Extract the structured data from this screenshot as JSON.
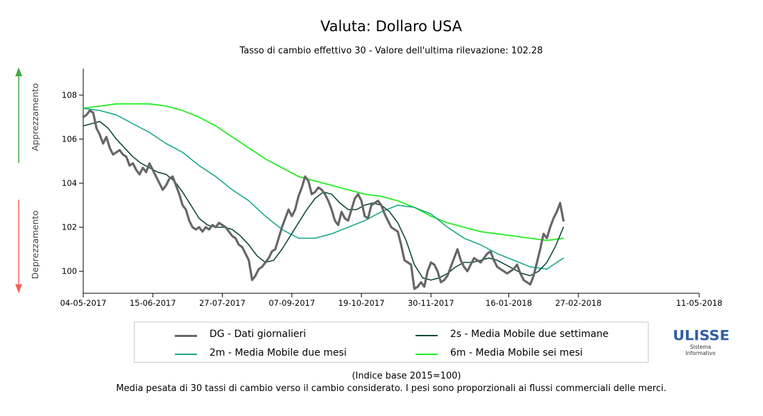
{
  "chart_data": {
    "type": "line",
    "title": "Valuta: Dollaro USA",
    "subtitle": "Tasso di cambio effettivo 30 - Valore dell'ultima rilevazione: 102.28",
    "y_ticks": [
      "100",
      "102",
      "104",
      "106",
      "108"
    ],
    "ylim": [
      99,
      109.2
    ],
    "x_ticks": [
      "04-05-2017",
      "15-06-2017",
      "27-07-2017",
      "07-09-2017",
      "19-10-2017",
      "30-11-2017",
      "16-01-2018",
      "27-02-2018",
      "11-05-2018"
    ],
    "x_tick_days": [
      0,
      42,
      84,
      126,
      168,
      210,
      257,
      299,
      372
    ],
    "x_max_day": 372,
    "grid": false,
    "side_labels": {
      "up": "Apprezzamento",
      "down": "Deprezzamento"
    },
    "series": [
      {
        "name": "DG - Dati giornalieri",
        "color": "#666666",
        "points": [
          [
            0,
            107.0
          ],
          [
            2,
            107.1
          ],
          [
            4,
            107.3
          ],
          [
            6,
            107.2
          ],
          [
            8,
            106.5
          ],
          [
            10,
            106.2
          ],
          [
            12,
            105.8
          ],
          [
            14,
            106.1
          ],
          [
            16,
            105.6
          ],
          [
            18,
            105.3
          ],
          [
            20,
            105.4
          ],
          [
            22,
            105.5
          ],
          [
            24,
            105.3
          ],
          [
            26,
            105.2
          ],
          [
            28,
            104.8
          ],
          [
            30,
            104.9
          ],
          [
            32,
            104.6
          ],
          [
            34,
            104.4
          ],
          [
            36,
            104.7
          ],
          [
            38,
            104.5
          ],
          [
            40,
            104.9
          ],
          [
            42,
            104.6
          ],
          [
            44,
            104.3
          ],
          [
            46,
            104.0
          ],
          [
            48,
            103.7
          ],
          [
            50,
            103.9
          ],
          [
            52,
            104.2
          ],
          [
            54,
            104.3
          ],
          [
            56,
            103.9
          ],
          [
            58,
            103.5
          ],
          [
            60,
            103.0
          ],
          [
            62,
            102.8
          ],
          [
            64,
            102.3
          ],
          [
            66,
            102.0
          ],
          [
            68,
            101.9
          ],
          [
            70,
            102.0
          ],
          [
            72,
            101.8
          ],
          [
            74,
            102.0
          ],
          [
            76,
            101.9
          ],
          [
            78,
            102.1
          ],
          [
            80,
            102.0
          ],
          [
            82,
            102.2
          ],
          [
            84,
            102.1
          ],
          [
            86,
            102.0
          ],
          [
            88,
            101.8
          ],
          [
            90,
            101.6
          ],
          [
            92,
            101.5
          ],
          [
            94,
            101.2
          ],
          [
            96,
            101.1
          ],
          [
            98,
            100.8
          ],
          [
            100,
            100.5
          ],
          [
            102,
            99.6
          ],
          [
            104,
            99.8
          ],
          [
            106,
            100.1
          ],
          [
            108,
            100.2
          ],
          [
            110,
            100.4
          ],
          [
            112,
            100.6
          ],
          [
            114,
            100.9
          ],
          [
            116,
            101.0
          ],
          [
            118,
            101.5
          ],
          [
            120,
            102.0
          ],
          [
            122,
            102.4
          ],
          [
            124,
            102.8
          ],
          [
            126,
            102.5
          ],
          [
            128,
            102.8
          ],
          [
            130,
            103.4
          ],
          [
            132,
            103.8
          ],
          [
            134,
            104.3
          ],
          [
            136,
            104.1
          ],
          [
            138,
            103.5
          ],
          [
            140,
            103.6
          ],
          [
            142,
            103.8
          ],
          [
            144,
            103.7
          ],
          [
            146,
            103.5
          ],
          [
            148,
            103.2
          ],
          [
            150,
            102.8
          ],
          [
            152,
            102.3
          ],
          [
            154,
            102.1
          ],
          [
            156,
            102.7
          ],
          [
            158,
            102.4
          ],
          [
            160,
            102.3
          ],
          [
            162,
            102.8
          ],
          [
            164,
            103.3
          ],
          [
            166,
            103.5
          ],
          [
            168,
            103.2
          ],
          [
            170,
            102.5
          ],
          [
            172,
            102.4
          ],
          [
            174,
            103.0
          ],
          [
            176,
            103.1
          ],
          [
            178,
            103.2
          ],
          [
            180,
            103.0
          ],
          [
            182,
            102.6
          ],
          [
            184,
            102.3
          ],
          [
            186,
            102.0
          ],
          [
            188,
            101.9
          ],
          [
            190,
            101.8
          ],
          [
            192,
            101.2
          ],
          [
            194,
            100.5
          ],
          [
            196,
            100.4
          ],
          [
            198,
            100.3
          ],
          [
            200,
            99.2
          ],
          [
            202,
            99.3
          ],
          [
            204,
            99.5
          ],
          [
            206,
            99.3
          ],
          [
            208,
            100.0
          ],
          [
            210,
            100.4
          ],
          [
            212,
            100.3
          ],
          [
            214,
            100.0
          ],
          [
            216,
            99.5
          ],
          [
            218,
            99.6
          ],
          [
            220,
            99.8
          ],
          [
            222,
            100.2
          ],
          [
            224,
            100.6
          ],
          [
            226,
            101.0
          ],
          [
            228,
            100.5
          ],
          [
            230,
            100.2
          ],
          [
            232,
            100.0
          ],
          [
            234,
            100.3
          ],
          [
            236,
            100.6
          ],
          [
            238,
            100.5
          ],
          [
            240,
            100.4
          ],
          [
            242,
            100.6
          ],
          [
            244,
            100.8
          ],
          [
            246,
            100.9
          ],
          [
            248,
            100.5
          ],
          [
            250,
            100.2
          ],
          [
            252,
            100.1
          ],
          [
            254,
            100.0
          ],
          [
            256,
            99.9
          ],
          [
            258,
            100.0
          ],
          [
            260,
            100.1
          ],
          [
            262,
            100.3
          ],
          [
            264,
            99.9
          ],
          [
            266,
            99.6
          ],
          [
            268,
            99.5
          ],
          [
            270,
            99.4
          ],
          [
            272,
            99.8
          ],
          [
            274,
            100.4
          ],
          [
            276,
            101.0
          ],
          [
            278,
            101.7
          ],
          [
            280,
            101.5
          ],
          [
            282,
            102.0
          ],
          [
            284,
            102.4
          ],
          [
            286,
            102.7
          ],
          [
            288,
            103.1
          ],
          [
            290,
            102.3
          ]
        ]
      },
      {
        "name": "2s - Media Mobile due settimane",
        "color": "#0d4a3c",
        "points": [
          [
            0,
            106.6
          ],
          [
            5,
            106.7
          ],
          [
            10,
            106.8
          ],
          [
            15,
            106.5
          ],
          [
            20,
            106.0
          ],
          [
            25,
            105.6
          ],
          [
            30,
            105.2
          ],
          [
            35,
            104.9
          ],
          [
            40,
            104.7
          ],
          [
            45,
            104.5
          ],
          [
            50,
            104.4
          ],
          [
            55,
            104.1
          ],
          [
            60,
            103.6
          ],
          [
            65,
            103.0
          ],
          [
            70,
            102.4
          ],
          [
            75,
            102.1
          ],
          [
            80,
            102.0
          ],
          [
            85,
            102.0
          ],
          [
            90,
            101.9
          ],
          [
            95,
            101.6
          ],
          [
            100,
            101.2
          ],
          [
            105,
            100.7
          ],
          [
            110,
            100.4
          ],
          [
            115,
            100.5
          ],
          [
            120,
            101.0
          ],
          [
            125,
            101.6
          ],
          [
            130,
            102.2
          ],
          [
            135,
            102.8
          ],
          [
            140,
            103.3
          ],
          [
            145,
            103.6
          ],
          [
            150,
            103.5
          ],
          [
            155,
            103.1
          ],
          [
            160,
            102.8
          ],
          [
            165,
            102.8
          ],
          [
            170,
            103.0
          ],
          [
            175,
            103.1
          ],
          [
            180,
            103.0
          ],
          [
            185,
            102.7
          ],
          [
            190,
            102.2
          ],
          [
            195,
            101.4
          ],
          [
            200,
            100.3
          ],
          [
            205,
            99.7
          ],
          [
            210,
            99.6
          ],
          [
            215,
            99.7
          ],
          [
            220,
            99.9
          ],
          [
            225,
            100.2
          ],
          [
            230,
            100.4
          ],
          [
            235,
            100.4
          ],
          [
            240,
            100.5
          ],
          [
            245,
            100.6
          ],
          [
            250,
            100.5
          ],
          [
            255,
            100.3
          ],
          [
            260,
            100.1
          ],
          [
            265,
            99.9
          ],
          [
            270,
            99.8
          ],
          [
            275,
            100.0
          ],
          [
            280,
            100.4
          ],
          [
            285,
            101.1
          ],
          [
            290,
            102.0
          ]
        ]
      },
      {
        "name": "2m - Media Mobile due mesi",
        "color": "#1aa98c",
        "points": [
          [
            0,
            107.4
          ],
          [
            10,
            107.3
          ],
          [
            20,
            107.1
          ],
          [
            30,
            106.7
          ],
          [
            40,
            106.3
          ],
          [
            50,
            105.8
          ],
          [
            60,
            105.4
          ],
          [
            70,
            104.8
          ],
          [
            80,
            104.3
          ],
          [
            90,
            103.7
          ],
          [
            100,
            103.2
          ],
          [
            110,
            102.5
          ],
          [
            120,
            101.9
          ],
          [
            130,
            101.5
          ],
          [
            140,
            101.5
          ],
          [
            150,
            101.7
          ],
          [
            160,
            102.0
          ],
          [
            170,
            102.3
          ],
          [
            180,
            102.7
          ],
          [
            190,
            103.0
          ],
          [
            200,
            102.9
          ],
          [
            210,
            102.6
          ],
          [
            220,
            102.0
          ],
          [
            230,
            101.5
          ],
          [
            240,
            101.2
          ],
          [
            250,
            100.8
          ],
          [
            260,
            100.5
          ],
          [
            270,
            100.2
          ],
          [
            280,
            100.1
          ],
          [
            290,
            100.6
          ]
        ]
      },
      {
        "name": "6m - Media Mobile sei mesi",
        "color": "#22ee22",
        "points": [
          [
            0,
            107.4
          ],
          [
            10,
            107.5
          ],
          [
            20,
            107.6
          ],
          [
            30,
            107.6
          ],
          [
            40,
            107.6
          ],
          [
            50,
            107.5
          ],
          [
            60,
            107.3
          ],
          [
            70,
            107.0
          ],
          [
            80,
            106.6
          ],
          [
            90,
            106.1
          ],
          [
            100,
            105.6
          ],
          [
            110,
            105.1
          ],
          [
            120,
            104.7
          ],
          [
            130,
            104.3
          ],
          [
            140,
            104.1
          ],
          [
            150,
            103.9
          ],
          [
            160,
            103.7
          ],
          [
            170,
            103.5
          ],
          [
            180,
            103.4
          ],
          [
            190,
            103.2
          ],
          [
            200,
            102.9
          ],
          [
            210,
            102.5
          ],
          [
            220,
            102.2
          ],
          [
            230,
            102.0
          ],
          [
            240,
            101.8
          ],
          [
            250,
            101.7
          ],
          [
            260,
            101.6
          ],
          [
            270,
            101.5
          ],
          [
            280,
            101.4
          ],
          [
            290,
            101.5
          ]
        ]
      }
    ]
  },
  "footer": {
    "note": "(Indice base 2015=100)",
    "description": "Media pesata di 30 tassi di cambio verso il cambio considerato. I pesi sono proporzionali ai flussi commerciali delle merci."
  },
  "logo": {
    "name": "ULISSE",
    "line1": "Sistema",
    "line2": "Informativo"
  },
  "colors": {
    "up_arrow": "#44aa44",
    "down_arrow": "#ee6655"
  }
}
